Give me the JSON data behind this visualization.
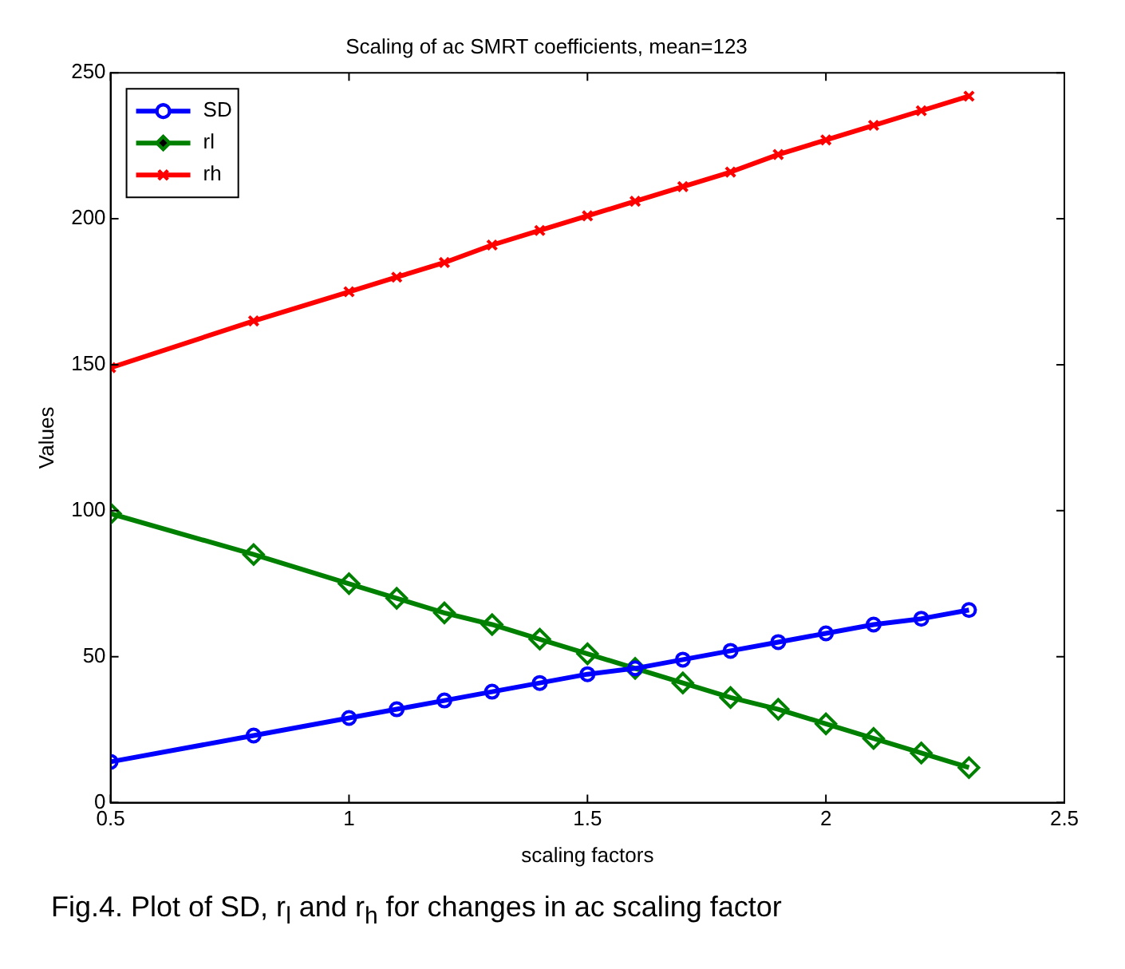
{
  "chart_data": {
    "type": "line",
    "title": "Scaling of ac SMRT coefficients, mean=123",
    "xlabel": "scaling factors",
    "ylabel": "Values",
    "x": [
      0.5,
      0.8,
      1.0,
      1.1,
      1.2,
      1.3,
      1.4,
      1.5,
      1.6,
      1.7,
      1.8,
      1.9,
      2.0,
      2.1,
      2.2,
      2.3
    ],
    "series": [
      {
        "name": "SD",
        "color": "#0000ff",
        "marker": "circle",
        "values": [
          14,
          23,
          29,
          32,
          35,
          38,
          41,
          44,
          46,
          49,
          52,
          55,
          58,
          61,
          63,
          66
        ]
      },
      {
        "name": "rl",
        "color": "#008000",
        "marker": "diamond",
        "values": [
          99,
          85,
          75,
          70,
          65,
          61,
          56,
          51,
          46,
          41,
          36,
          32,
          27,
          22,
          17,
          12
        ]
      },
      {
        "name": "rh",
        "color": "#ff0000",
        "marker": "cross",
        "values": [
          149,
          165,
          175,
          180,
          185,
          191,
          196,
          201,
          206,
          211,
          216,
          222,
          227,
          232,
          237,
          242
        ]
      }
    ],
    "xlim": [
      0.5,
      2.5
    ],
    "xticks": [
      0.5,
      1,
      1.5,
      2,
      2.5
    ],
    "ylim": [
      0,
      250
    ],
    "yticks": [
      0,
      50,
      100,
      150,
      200,
      250
    ],
    "grid": false,
    "legend": "top left",
    "line_style": "solid",
    "annotations": [
      "Fig.4. Plot of SD, r$_{l}$ and r$_{h}$ for changes in ac scaling factor"
    ]
  }
}
